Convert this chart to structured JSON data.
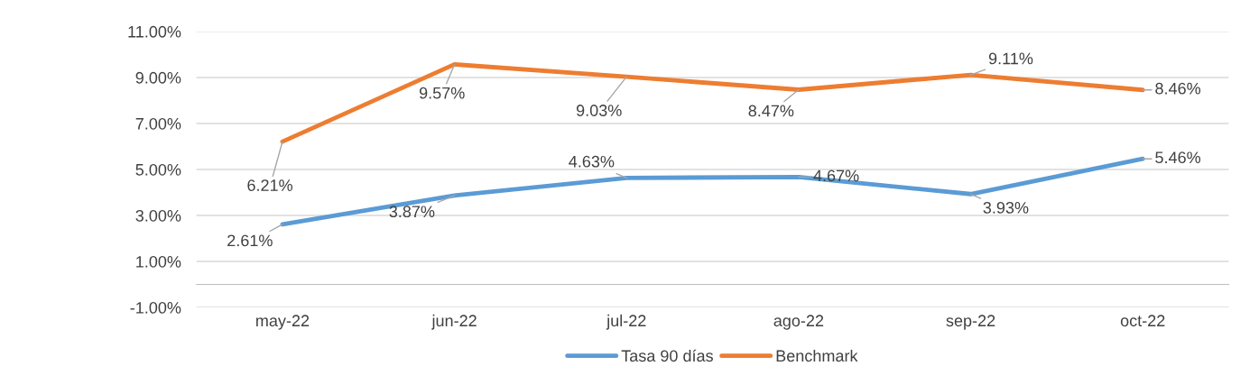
{
  "chart_data": {
    "type": "line",
    "categories": [
      "may-22",
      "jun-22",
      "jul-22",
      "ago-22",
      "sep-22",
      "oct-22"
    ],
    "series": [
      {
        "name": "Tasa 90 días",
        "color": "#5b9bd5",
        "values": [
          2.61,
          3.87,
          4.63,
          4.67,
          3.93,
          5.46
        ],
        "value_labels": [
          "2.61%",
          "3.87%",
          "4.63%",
          "4.67%",
          "3.93%",
          "5.46%"
        ]
      },
      {
        "name": "Benchmark",
        "color": "#ed7d31",
        "values": [
          6.21,
          9.57,
          9.03,
          8.47,
          9.11,
          8.46
        ],
        "value_labels": [
          "6.21%",
          "9.57%",
          "9.03%",
          "8.47%",
          "9.11%",
          "8.46%"
        ]
      }
    ],
    "ylim": [
      -1,
      11
    ],
    "yticks": [
      {
        "value": -1,
        "label": "-1.00%"
      },
      {
        "value": 1,
        "label": "1.00%"
      },
      {
        "value": 3,
        "label": "3.00%"
      },
      {
        "value": 5,
        "label": "5.00%"
      },
      {
        "value": 7,
        "label": "7.00%"
      },
      {
        "value": 9,
        "label": "9.00%"
      },
      {
        "value": 11,
        "label": "11.00%"
      }
    ],
    "grid": "y",
    "legend": "bottom",
    "marker": "none",
    "line_style": "solid",
    "data_labels": true
  }
}
